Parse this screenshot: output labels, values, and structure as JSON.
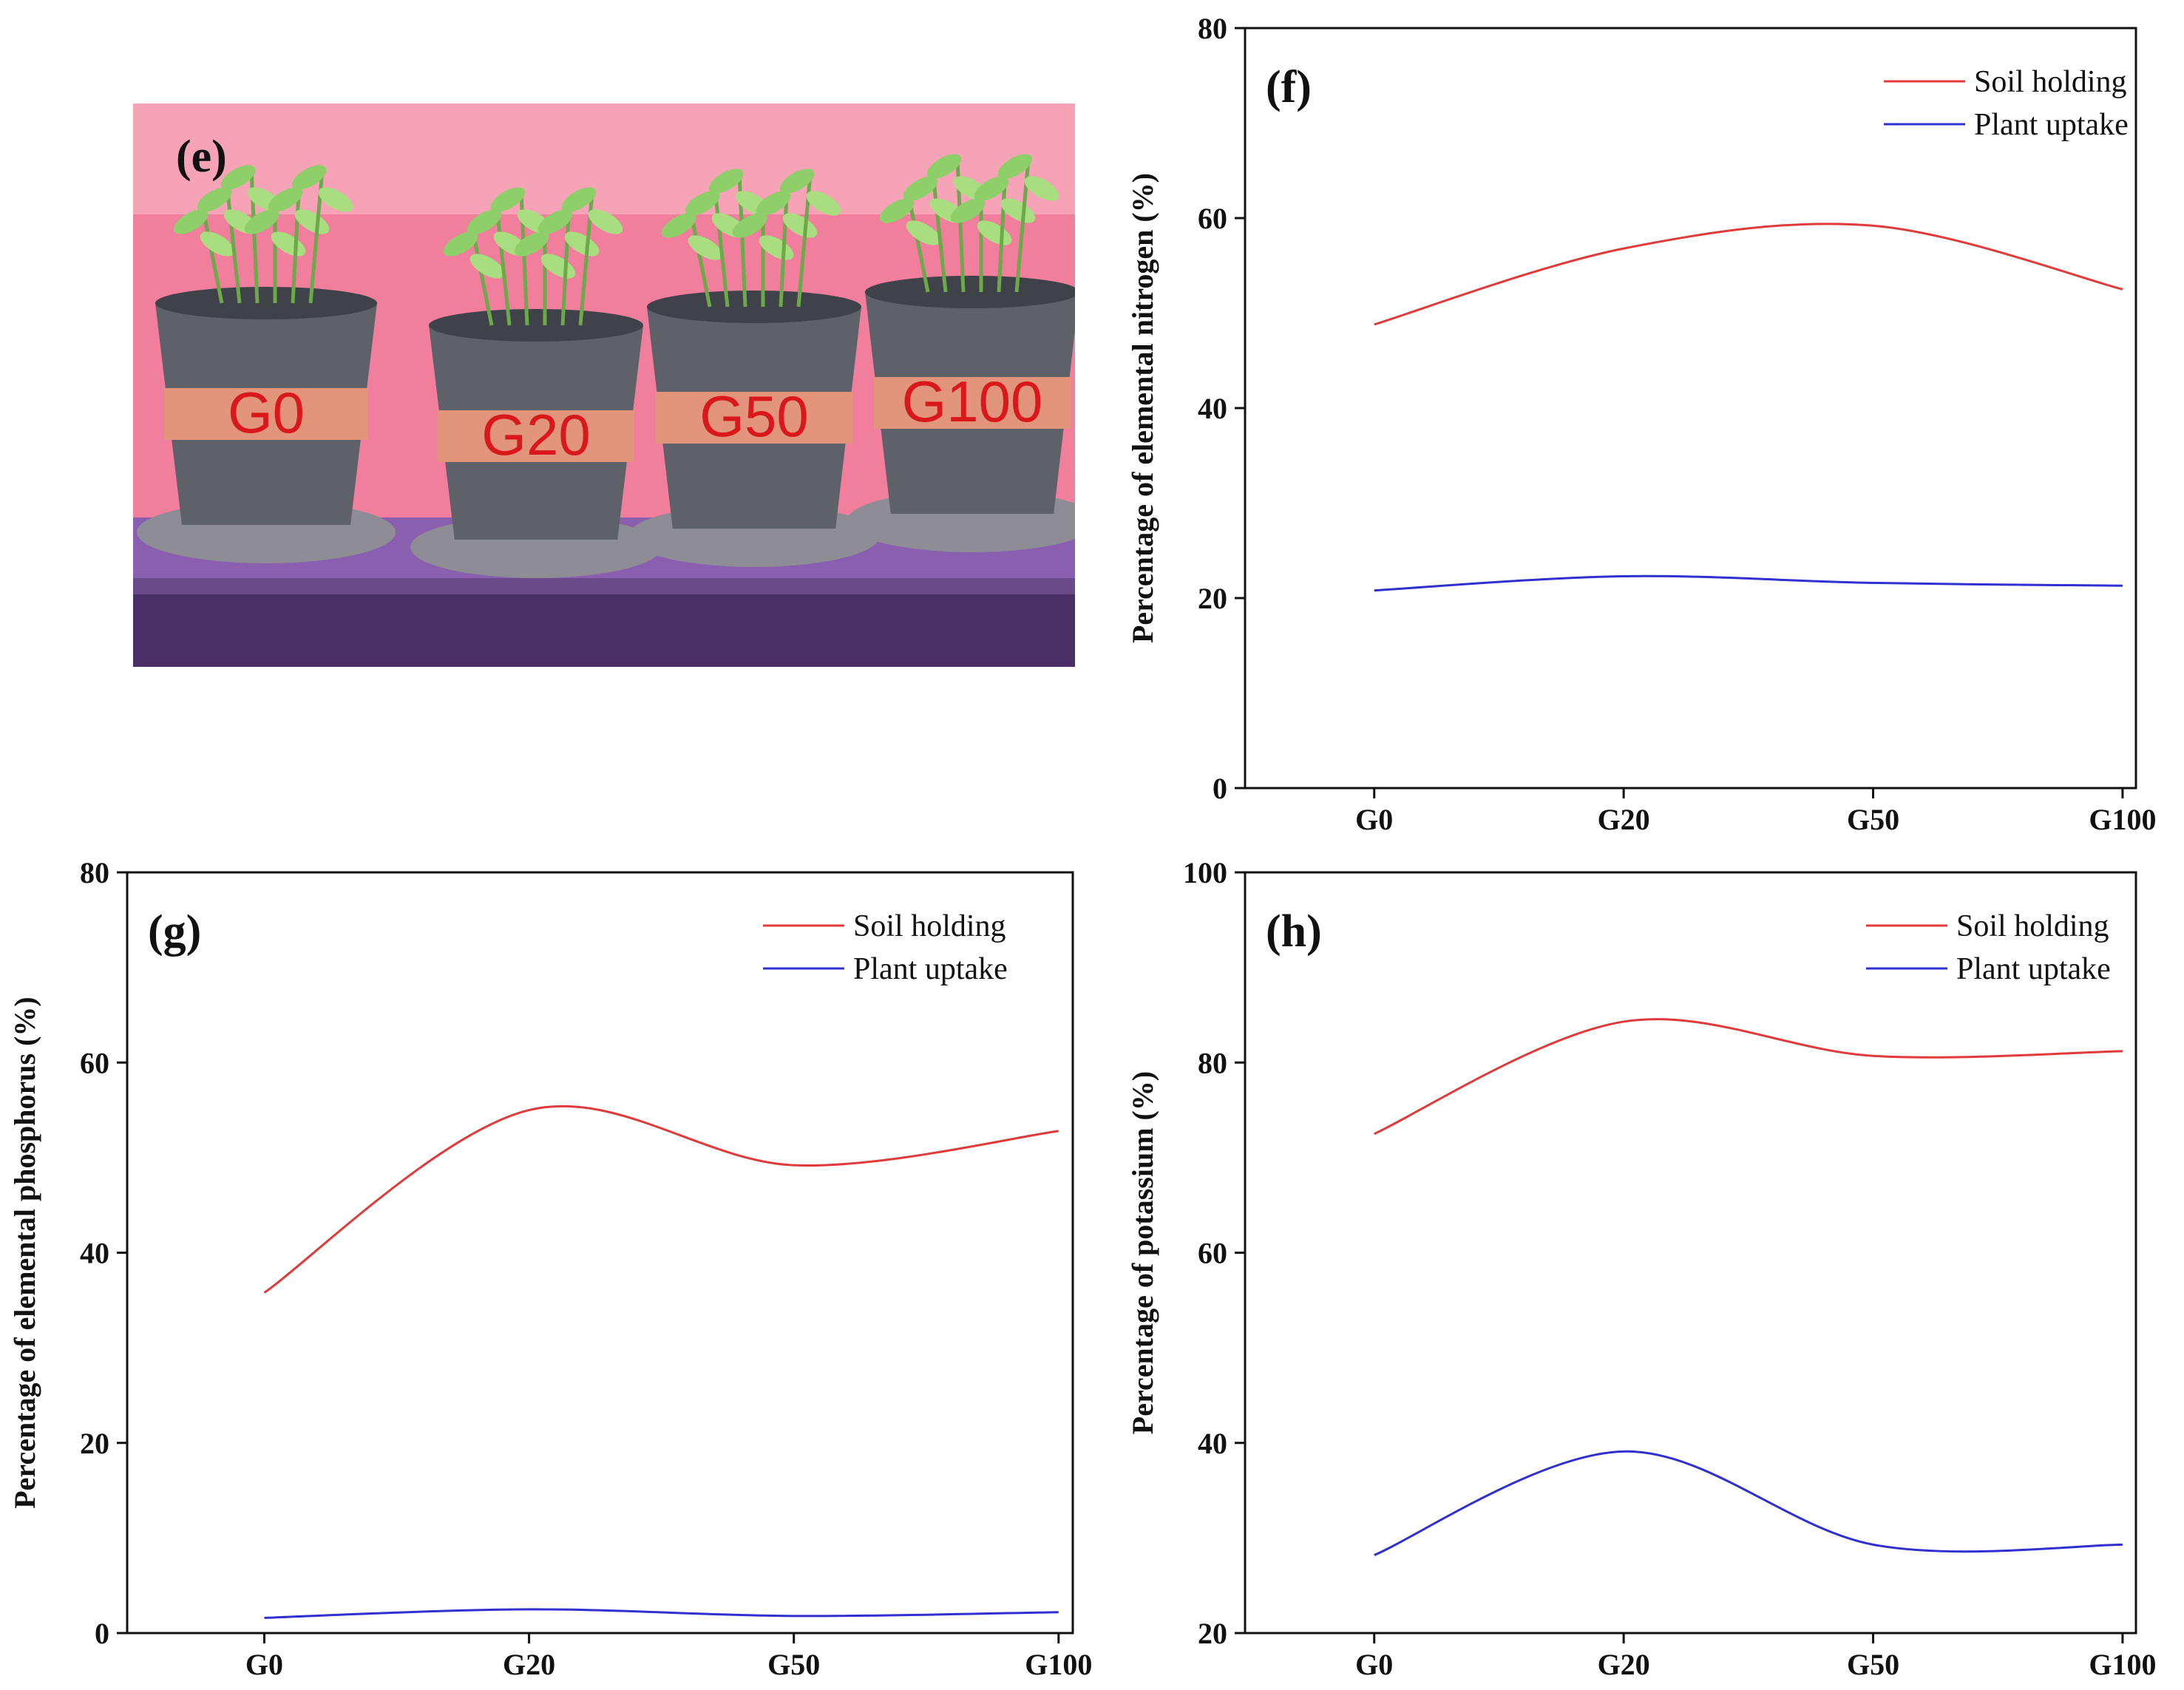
{
  "photo": {
    "panel_label": "(e)",
    "pot_labels": [
      "G0",
      "G20",
      "G50",
      "G100"
    ],
    "colors": {
      "wall": "#f07e9c",
      "shelf": "#4a2e66",
      "pot": "#5e6168",
      "band": "#e2957a",
      "pot_text": "#d9181e",
      "leaf": "#8fcf6a"
    }
  },
  "chart_data": [
    {
      "panel": "(f)",
      "type": "line",
      "categories": [
        "G0",
        "G20",
        "G50",
        "G100"
      ],
      "ylabel": "Percentage of elemental nitrogen (%)",
      "ylim": [
        0,
        80
      ],
      "yticks": [
        0,
        20,
        40,
        60,
        80
      ],
      "series": [
        {
          "name": "Soil holding",
          "color": "#e03a3a",
          "values": [
            48.8,
            56.8,
            59.2,
            52.5
          ]
        },
        {
          "name": "Plant uptake",
          "color": "#3030d0",
          "values": [
            20.8,
            22.3,
            21.6,
            21.3
          ]
        }
      ]
    },
    {
      "panel": "(g)",
      "type": "line",
      "categories": [
        "G0",
        "G20",
        "G50",
        "G100"
      ],
      "ylabel": "Percentage of elemental phosphorus (%)",
      "ylim": [
        0,
        80
      ],
      "yticks": [
        0,
        20,
        40,
        60,
        80
      ],
      "series": [
        {
          "name": "Soil holding",
          "color": "#e03a3a",
          "values": [
            35.8,
            55.0,
            49.2,
            52.8
          ]
        },
        {
          "name": "Plant uptake",
          "color": "#3030d0",
          "values": [
            1.6,
            2.5,
            1.8,
            2.2
          ]
        }
      ]
    },
    {
      "panel": "(h)",
      "type": "line",
      "categories": [
        "G0",
        "G20",
        "G50",
        "G100"
      ],
      "ylabel": "Percentage of potassium (%)",
      "ylim": [
        20,
        100
      ],
      "yticks": [
        20,
        40,
        60,
        80,
        100
      ],
      "series": [
        {
          "name": "Soil holding",
          "color": "#e03a3a",
          "values": [
            72.5,
            84.3,
            80.7,
            81.2
          ]
        },
        {
          "name": "Plant uptake",
          "color": "#3030d0",
          "values": [
            28.2,
            39.1,
            29.3,
            29.3
          ]
        }
      ]
    }
  ]
}
